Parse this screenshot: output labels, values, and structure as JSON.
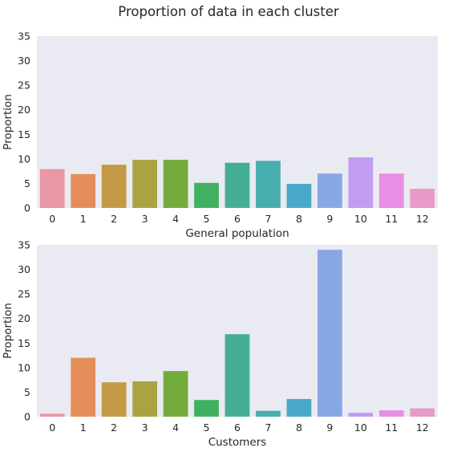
{
  "chart_data": {
    "title": "Proportion of data in each cluster",
    "colors": [
      "#ea96a3",
      "#e58e5a",
      "#c39a47",
      "#a8a444",
      "#75ab3d",
      "#40b062",
      "#45af93",
      "#47aead",
      "#4aa9c8",
      "#88a8e5",
      "#c29def",
      "#e98de5",
      "#e89bc6"
    ],
    "panels": [
      {
        "type": "bar",
        "xlabel": "General population",
        "ylabel": "Proportion",
        "ylim": [
          0,
          35
        ],
        "yticks": [
          0,
          5,
          10,
          15,
          20,
          25,
          30,
          35
        ],
        "grid": false,
        "categories": [
          "0",
          "1",
          "2",
          "3",
          "4",
          "5",
          "6",
          "7",
          "8",
          "9",
          "10",
          "11",
          "12"
        ],
        "values": [
          7.9,
          6.9,
          8.8,
          9.8,
          9.8,
          5.1,
          9.2,
          9.6,
          4.9,
          7.0,
          10.3,
          7.0,
          3.9
        ]
      },
      {
        "type": "bar",
        "xlabel": "Customers",
        "ylabel": "Proportion",
        "ylim": [
          0,
          35
        ],
        "yticks": [
          0,
          5,
          10,
          15,
          20,
          25,
          30,
          35
        ],
        "grid": false,
        "categories": [
          "0",
          "1",
          "2",
          "3",
          "4",
          "5",
          "6",
          "7",
          "8",
          "9",
          "10",
          "11",
          "12"
        ],
        "values": [
          0.6,
          12.0,
          7.0,
          7.2,
          9.3,
          3.4,
          16.8,
          1.2,
          3.6,
          34.0,
          0.8,
          1.3,
          1.7
        ]
      }
    ]
  }
}
